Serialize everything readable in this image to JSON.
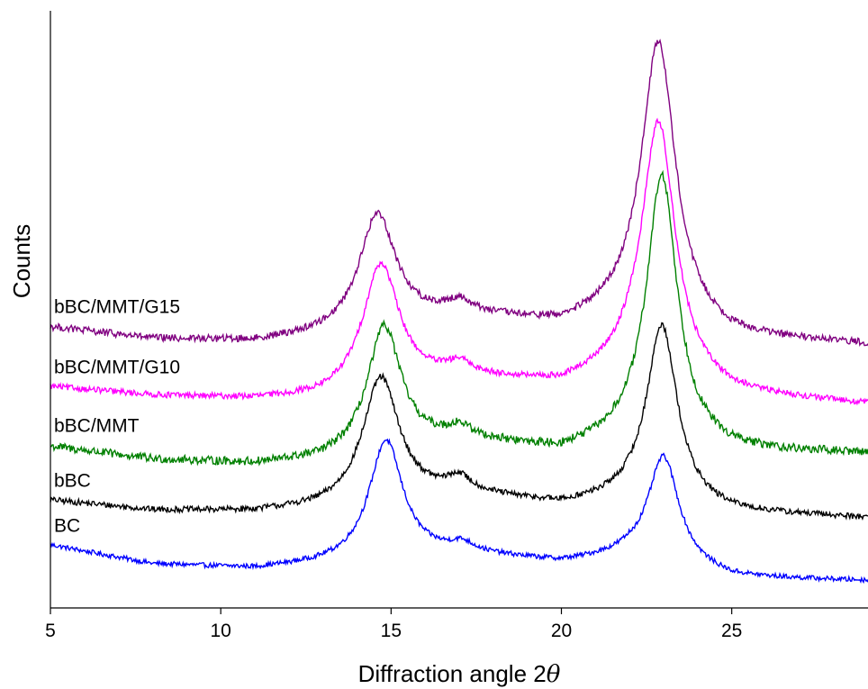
{
  "chart_data": {
    "type": "line",
    "title": "",
    "xlabel": "Diffraction angle 2",
    "xlabel_symbol": "θ",
    "ylabel": "Counts",
    "xlim": [
      5,
      29
    ],
    "ylim": [
      0,
      100
    ],
    "xticks": [
      "5",
      "10",
      "15",
      "20",
      "25"
    ],
    "xtick_values": [
      5,
      10,
      15,
      20,
      25
    ],
    "y_tick_labels": false,
    "grid": false,
    "legend": "inline labels at left",
    "series": [
      {
        "name": "BC",
        "color": "#0000ff",
        "baseline": [
          [
            5,
            10.5
          ],
          [
            8,
            7.3
          ],
          [
            11,
            6.5
          ],
          [
            13,
            7.2
          ],
          [
            17,
            9.0
          ],
          [
            20,
            7.5
          ],
          [
            22,
            8.5
          ],
          [
            25,
            5.0
          ],
          [
            29,
            4.5
          ]
        ],
        "peaks": [
          {
            "x": 14.85,
            "height": 20.0,
            "width": 0.6
          },
          {
            "x": 17.1,
            "height": 1.2,
            "width": 0.4
          },
          {
            "x": 23.0,
            "height": 18.0,
            "width": 0.55
          }
        ],
        "noise": 0.4
      },
      {
        "name": "bBC",
        "color": "#000000",
        "baseline": [
          [
            5,
            18.0
          ],
          [
            8,
            16.3
          ],
          [
            11,
            16.0
          ],
          [
            13,
            16.5
          ],
          [
            17,
            19.0
          ],
          [
            20,
            17.0
          ],
          [
            22,
            18.0
          ],
          [
            25,
            15.8
          ],
          [
            29,
            15.0
          ]
        ],
        "peaks": [
          {
            "x": 14.7,
            "height": 21.0,
            "width": 0.65
          },
          {
            "x": 17.0,
            "height": 2.0,
            "width": 0.4
          },
          {
            "x": 22.95,
            "height": 30.0,
            "width": 0.55
          }
        ],
        "noise": 0.5
      },
      {
        "name": "bBC/MMT",
        "color": "#008000",
        "baseline": [
          [
            5,
            27.0
          ],
          [
            8,
            24.8
          ],
          [
            11,
            24.0
          ],
          [
            13,
            24.5
          ],
          [
            17,
            28.0
          ],
          [
            20,
            26.0
          ],
          [
            22,
            28.0
          ],
          [
            25,
            26.0
          ],
          [
            29,
            25.8
          ]
        ],
        "peaks": [
          {
            "x": 14.8,
            "height": 21.0,
            "width": 0.6
          },
          {
            "x": 17.0,
            "height": 1.5,
            "width": 0.4
          },
          {
            "x": 22.95,
            "height": 45.0,
            "width": 0.55
          }
        ],
        "noise": 0.7
      },
      {
        "name": "bBC/MMT/G10",
        "color": "#ff00ff",
        "baseline": [
          [
            5,
            37.0
          ],
          [
            8,
            35.5
          ],
          [
            11,
            34.8
          ],
          [
            13,
            35.0
          ],
          [
            17,
            38.5
          ],
          [
            20,
            37.0
          ],
          [
            22,
            39.5
          ],
          [
            25,
            35.5
          ],
          [
            29,
            34.0
          ]
        ],
        "peaks": [
          {
            "x": 14.7,
            "height": 21.0,
            "width": 0.65
          },
          {
            "x": 17.0,
            "height": 1.5,
            "width": 0.4
          },
          {
            "x": 22.85,
            "height": 43.0,
            "width": 0.6
          }
        ],
        "noise": 0.5
      },
      {
        "name": "bBC/MMT/G15",
        "color": "#800080",
        "baseline": [
          [
            5,
            47.0
          ],
          [
            8,
            45.0
          ],
          [
            11,
            44.5
          ],
          [
            13,
            45.5
          ],
          [
            17,
            49.0
          ],
          [
            20,
            47.0
          ],
          [
            22,
            49.0
          ],
          [
            25,
            45.0
          ],
          [
            29,
            44.0
          ]
        ],
        "peaks": [
          {
            "x": 14.6,
            "height": 19.0,
            "width": 0.65
          },
          {
            "x": 17.0,
            "height": 1.5,
            "width": 0.4
          },
          {
            "x": 22.85,
            "height": 47.0,
            "width": 0.6
          }
        ],
        "noise": 0.6
      }
    ]
  }
}
